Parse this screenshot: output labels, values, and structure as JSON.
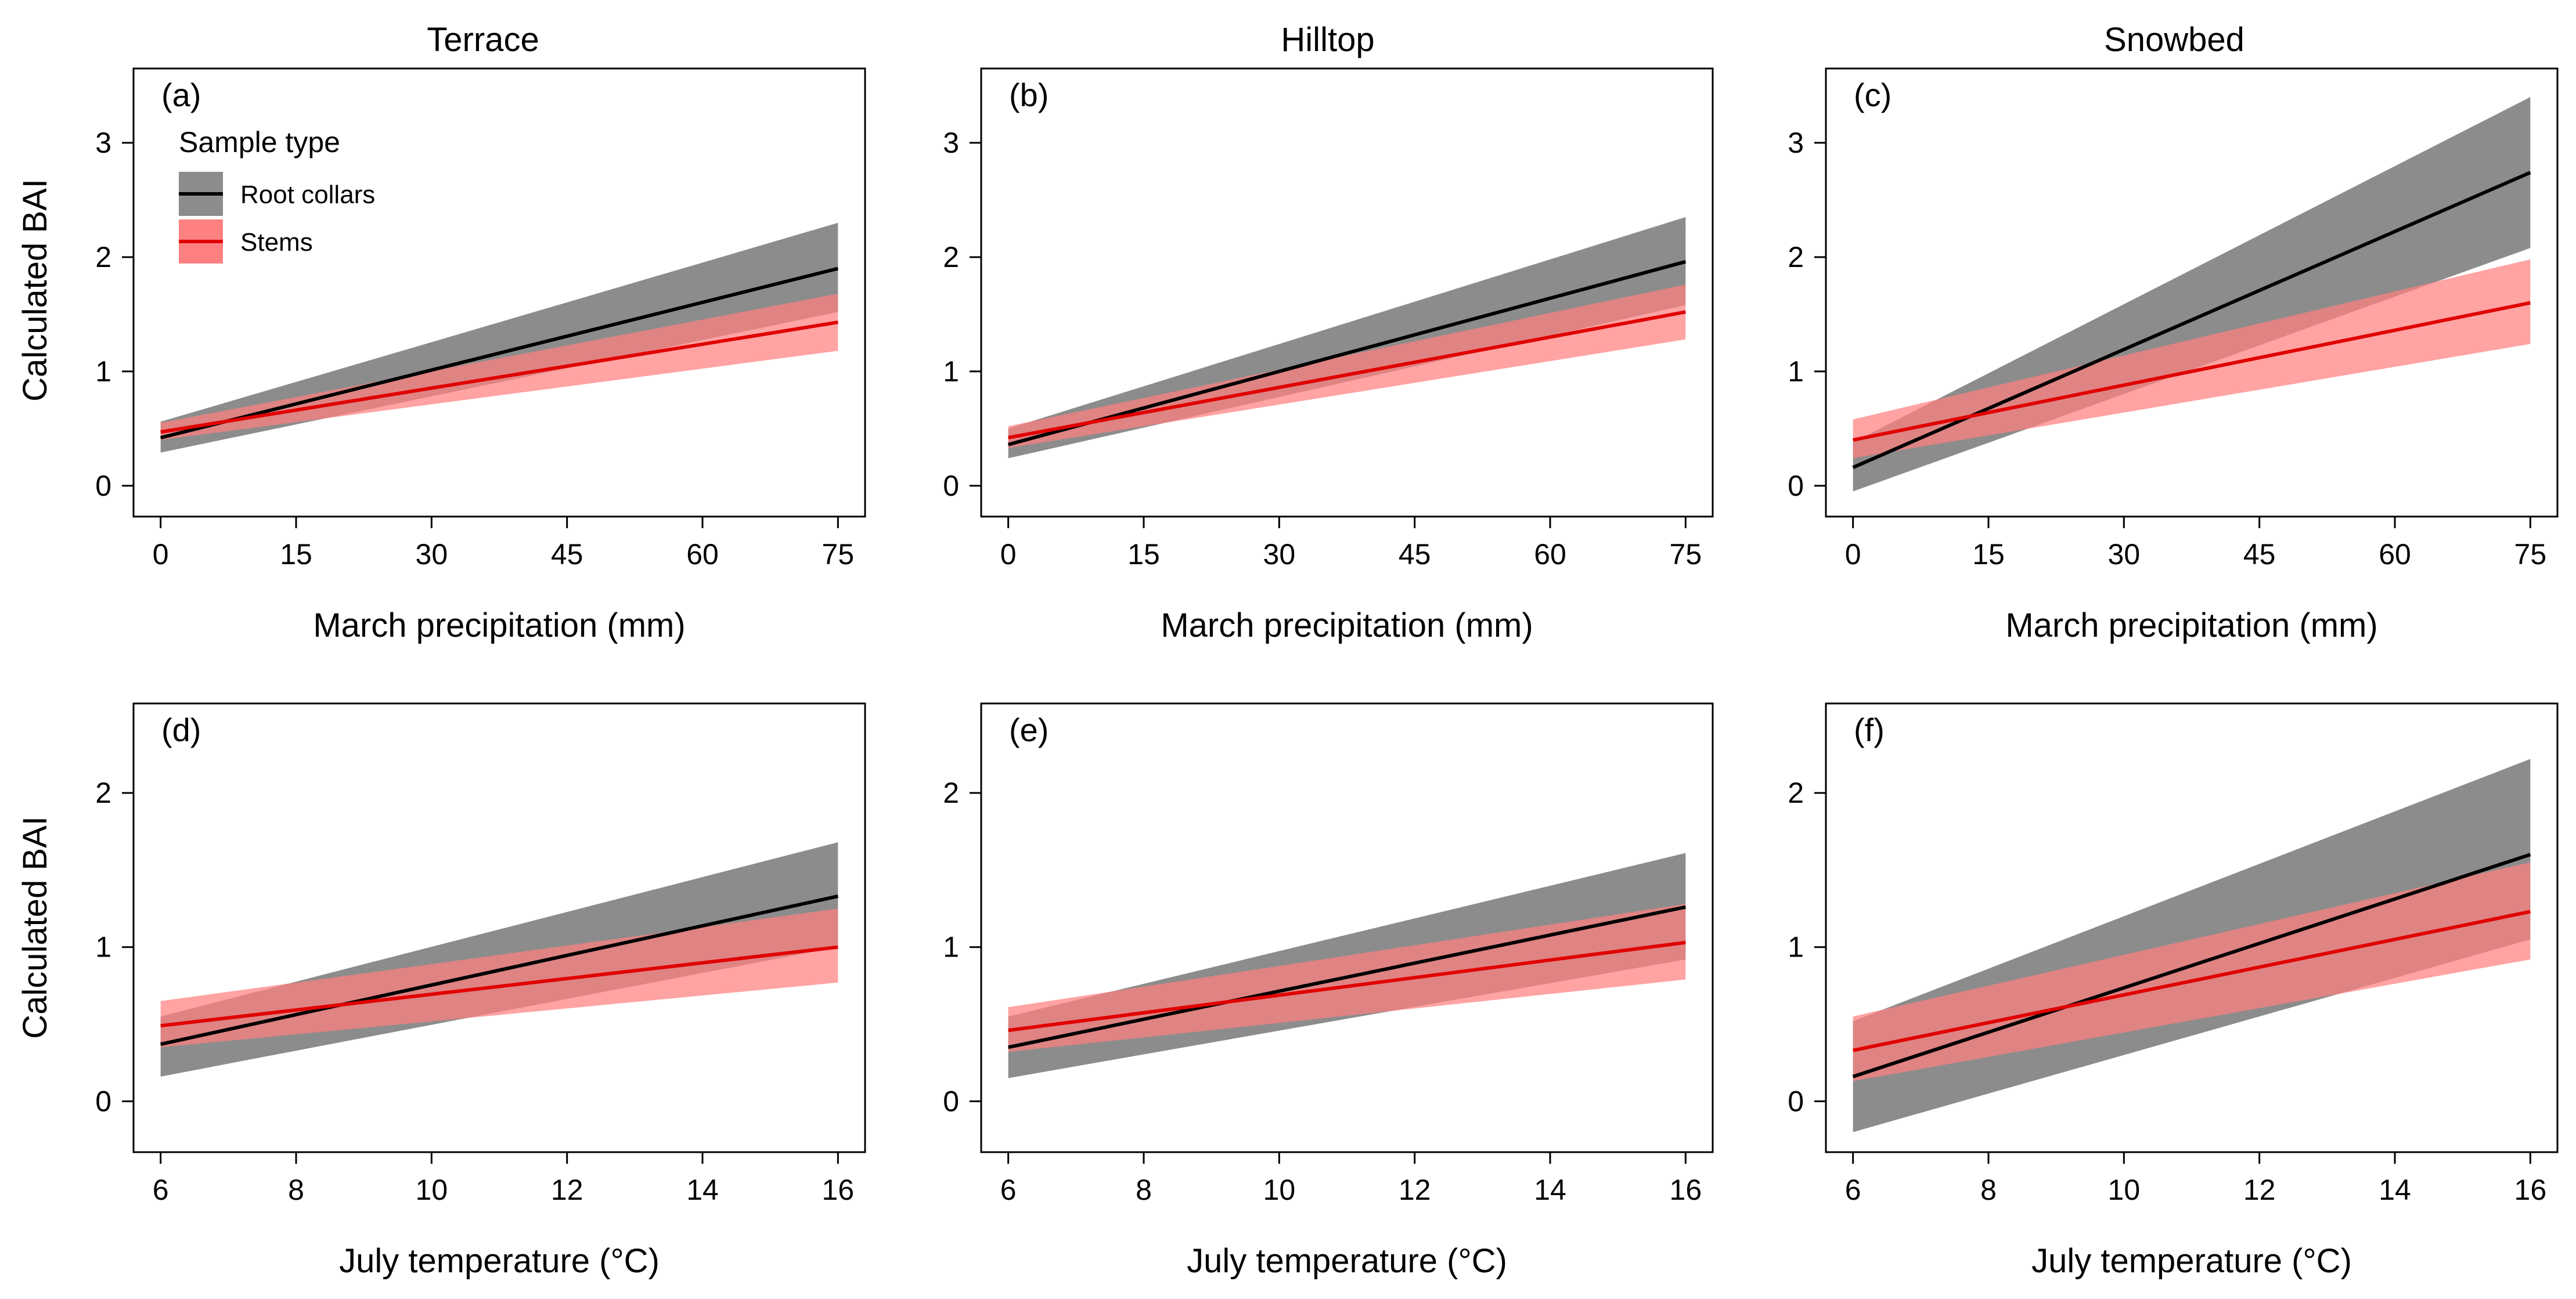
{
  "legend": {
    "title": "Sample type",
    "items": [
      {
        "label": "Root collars",
        "line_color": "#000000",
        "band_color": "#8c8c8c"
      },
      {
        "label": "Stems",
        "line_color": "#e00000",
        "band_color": "#ff8080"
      }
    ]
  },
  "column_titles": [
    "Terrace",
    "Hilltop",
    "Snowbed"
  ],
  "y_axis_label": "Calculated BAI",
  "chart_data": [
    {
      "type": "line",
      "panel": "(a)",
      "site": "Terrace",
      "xlabel": "March precipitation (mm)",
      "ylabel": "Calculated BAI",
      "xlim": [
        -3,
        78
      ],
      "ylim": [
        -0.27,
        3.65
      ],
      "xticks": [
        0,
        15,
        30,
        45,
        60,
        75
      ],
      "yticks": [
        0,
        1,
        2,
        3
      ],
      "series": [
        {
          "name": "Root collars",
          "x": [
            0,
            75
          ],
          "fit": [
            0.42,
            1.9
          ],
          "lower": [
            0.29,
            1.52
          ],
          "upper": [
            0.56,
            2.3
          ]
        },
        {
          "name": "Stems",
          "x": [
            0,
            75
          ],
          "fit": [
            0.47,
            1.43
          ],
          "lower": [
            0.4,
            1.18
          ],
          "upper": [
            0.55,
            1.68
          ]
        }
      ]
    },
    {
      "type": "line",
      "panel": "(b)",
      "site": "Hilltop",
      "xlabel": "March precipitation (mm)",
      "ylabel": "",
      "xlim": [
        -3,
        78
      ],
      "ylim": [
        -0.27,
        3.65
      ],
      "xticks": [
        0,
        15,
        30,
        45,
        60,
        75
      ],
      "yticks": [
        0,
        1,
        2,
        3
      ],
      "series": [
        {
          "name": "Root collars",
          "x": [
            0,
            75
          ],
          "fit": [
            0.36,
            1.96
          ],
          "lower": [
            0.24,
            1.58
          ],
          "upper": [
            0.5,
            2.35
          ]
        },
        {
          "name": "Stems",
          "x": [
            0,
            75
          ],
          "fit": [
            0.42,
            1.52
          ],
          "lower": [
            0.33,
            1.28
          ],
          "upper": [
            0.52,
            1.76
          ]
        }
      ]
    },
    {
      "type": "line",
      "panel": "(c)",
      "site": "Snowbed",
      "xlabel": "March precipitation (mm)",
      "ylabel": "",
      "xlim": [
        -3,
        78
      ],
      "ylim": [
        -0.27,
        3.65
      ],
      "xticks": [
        0,
        15,
        30,
        45,
        60,
        75
      ],
      "yticks": [
        0,
        1,
        2,
        3
      ],
      "series": [
        {
          "name": "Root collars",
          "x": [
            0,
            75
          ],
          "fit": [
            0.16,
            2.74
          ],
          "lower": [
            -0.05,
            2.08
          ],
          "upper": [
            0.38,
            3.4
          ]
        },
        {
          "name": "Stems",
          "x": [
            0,
            75
          ],
          "fit": [
            0.4,
            1.6
          ],
          "lower": [
            0.24,
            1.24
          ],
          "upper": [
            0.58,
            1.98
          ]
        }
      ]
    },
    {
      "type": "line",
      "panel": "(d)",
      "site": "Terrace",
      "xlabel": "July temperature (°C)",
      "ylabel": "Calculated BAI",
      "xlim": [
        5.6,
        16.4
      ],
      "ylim": [
        -0.33,
        2.58
      ],
      "xticks": [
        6,
        8,
        10,
        12,
        14,
        16
      ],
      "yticks": [
        0,
        1,
        2
      ],
      "series": [
        {
          "name": "Root collars",
          "x": [
            6,
            16
          ],
          "fit": [
            0.37,
            1.33
          ],
          "lower": [
            0.16,
            1.0
          ],
          "upper": [
            0.55,
            1.68
          ]
        },
        {
          "name": "Stems",
          "x": [
            6,
            16
          ],
          "fit": [
            0.49,
            1.0
          ],
          "lower": [
            0.35,
            0.77
          ],
          "upper": [
            0.65,
            1.25
          ]
        }
      ]
    },
    {
      "type": "line",
      "panel": "(e)",
      "site": "Hilltop",
      "xlabel": "July temperature (°C)",
      "ylabel": "",
      "xlim": [
        5.6,
        16.4
      ],
      "ylim": [
        -0.33,
        2.58
      ],
      "xticks": [
        6,
        8,
        10,
        12,
        14,
        16
      ],
      "yticks": [
        0,
        1,
        2
      ],
      "series": [
        {
          "name": "Root collars",
          "x": [
            6,
            16
          ],
          "fit": [
            0.35,
            1.26
          ],
          "lower": [
            0.15,
            0.92
          ],
          "upper": [
            0.55,
            1.61
          ]
        },
        {
          "name": "Stems",
          "x": [
            6,
            16
          ],
          "fit": [
            0.46,
            1.03
          ],
          "lower": [
            0.32,
            0.79
          ],
          "upper": [
            0.61,
            1.28
          ]
        }
      ]
    },
    {
      "type": "line",
      "panel": "(f)",
      "site": "Snowbed",
      "xlabel": "July temperature (°C)",
      "ylabel": "",
      "xlim": [
        5.6,
        16.4
      ],
      "ylim": [
        -0.33,
        2.58
      ],
      "xticks": [
        6,
        8,
        10,
        12,
        14,
        16
      ],
      "yticks": [
        0,
        1,
        2
      ],
      "series": [
        {
          "name": "Root collars",
          "x": [
            6,
            16
          ],
          "fit": [
            0.16,
            1.6
          ],
          "lower": [
            -0.2,
            1.05
          ],
          "upper": [
            0.52,
            2.22
          ]
        },
        {
          "name": "Stems",
          "x": [
            6,
            16
          ],
          "fit": [
            0.33,
            1.23
          ],
          "lower": [
            0.13,
            0.92
          ],
          "upper": [
            0.55,
            1.55
          ]
        }
      ]
    }
  ]
}
